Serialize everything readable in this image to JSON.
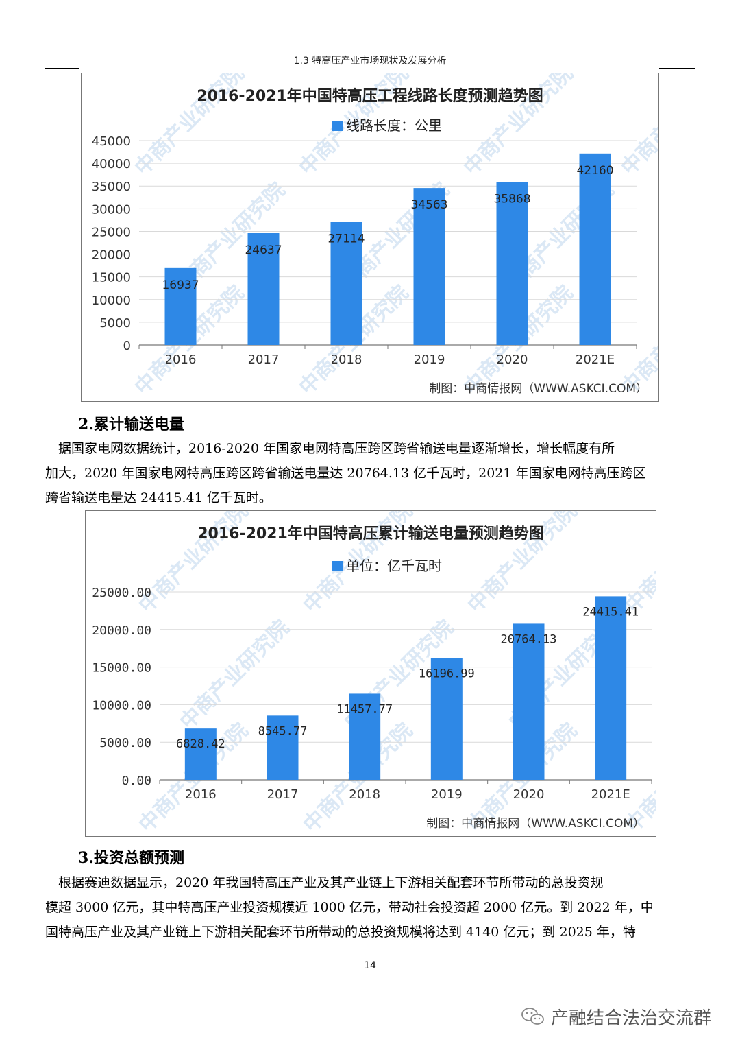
{
  "header": {
    "running_title": "1.3  特高压产业市场现状及发展分析"
  },
  "watermark": {
    "text": "中商产业研究院"
  },
  "chart1": {
    "credit": "制图：中商情报网（WWW.ASKCI.COM）",
    "value_labels": [
      "16937",
      "24637",
      "27114",
      "34563",
      "35868",
      "42160"
    ],
    "bar_color": "#2e88e6"
  },
  "chart2": {
    "credit": "制图：中商情报网（WWW.ASKCI.COM）",
    "value_labels": [
      "6828.42",
      "8545.77",
      "11457.77",
      "16196.99",
      "20764.13",
      "24415.41"
    ],
    "bar_color": "#2e88e6"
  },
  "chart_data": [
    {
      "type": "bar",
      "title": "2016-2021年中国特高压工程线路长度预测趋势图",
      "categories": [
        "2016",
        "2017",
        "2018",
        "2019",
        "2020",
        "2021E"
      ],
      "series": [
        {
          "name": "线路长度：公里",
          "values": [
            16937,
            24637,
            27114,
            34563,
            35868,
            42160
          ]
        }
      ],
      "yticks": [
        "0",
        "5000",
        "10000",
        "15000",
        "20000",
        "25000",
        "30000",
        "35000",
        "40000",
        "45000"
      ],
      "ylim": [
        0,
        45000
      ],
      "legend": "top-center",
      "grid": true
    },
    {
      "type": "bar",
      "title": "2016-2021年中国特高压累计输送电量预测趋势图",
      "categories": [
        "2016",
        "2017",
        "2018",
        "2019",
        "2020",
        "2021E"
      ],
      "series": [
        {
          "name": "单位：亿千瓦时",
          "values": [
            6828.42,
            8545.77,
            11457.77,
            16196.99,
            20764.13,
            24415.41
          ]
        }
      ],
      "yticks": [
        "0.00",
        "5000.00",
        "10000.00",
        "15000.00",
        "20000.00",
        "25000.00"
      ],
      "ylim": [
        0,
        25000
      ],
      "legend": "top-center",
      "grid": true
    }
  ],
  "section2": {
    "title": "2.累计输送电量",
    "lines": [
      "　据国家电网数据统计，2016-2020 年国家电网特高压跨区跨省输送电量逐渐增长，增长幅度有所",
      "加大，2020 年国家电网特高压跨区跨省输送电量达 20764.13 亿千瓦时，2021 年国家电网特高压跨区",
      "跨省输送电量达 24415.41 亿千瓦时。"
    ]
  },
  "section3": {
    "title": "3.投资总额预测",
    "lines": [
      "　根据赛迪数据显示，2020 年我国特高压产业及其产业链上下游相关配套环节所带动的总投资规",
      "模超 3000 亿元，其中特高压产业投资规模近 1000 亿元，带动社会投资超 2000 亿元。到 2022 年，中",
      "国特高压产业及其产业链上下游相关配套环节所带动的总投资规模将达到 4140 亿元；到 2025 年，特"
    ]
  },
  "footer": {
    "page_number": "14",
    "wechat_name": "产融结合法治交流群"
  }
}
